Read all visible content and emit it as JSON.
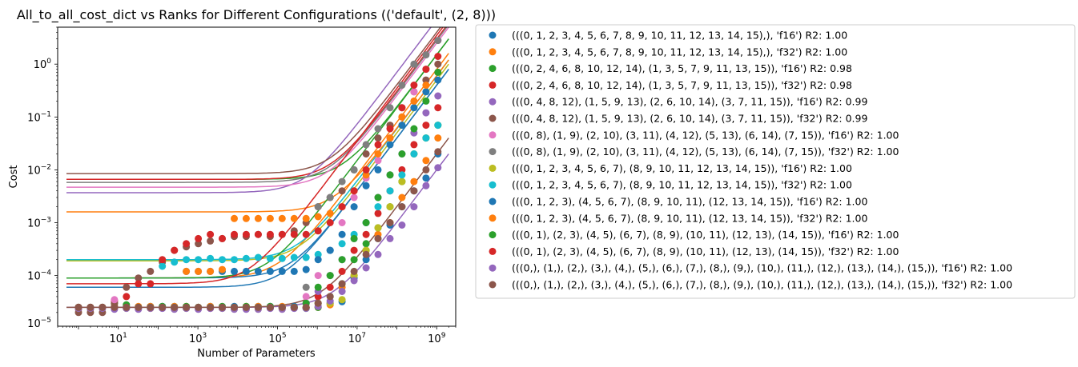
{
  "chart_data": {
    "type": "scatter",
    "title": "All_to_all_cost_dict vs Ranks for Different Configurations (('default', (2, 8)))",
    "xlabel": "Number of Parameters",
    "ylabel": "Cost",
    "xscale": "log",
    "yscale": "log",
    "xlim": [
      0.3,
      3000000000
    ],
    "ylim": [
      1.1e-05,
      5
    ],
    "xticks": [
      10,
      1000,
      100000,
      10000000,
      1000000000
    ],
    "xtick_labels": [
      [
        "10",
        "1"
      ],
      [
        "10",
        "3"
      ],
      [
        "10",
        "5"
      ],
      [
        "10",
        "7"
      ],
      [
        "10",
        "9"
      ]
    ],
    "yticks": [
      1e-05,
      0.0001,
      0.001,
      0.01,
      0.1,
      1
    ],
    "ytick_labels": [
      [
        "10",
        "−5"
      ],
      [
        "10",
        "−4"
      ],
      [
        "10",
        "−3"
      ],
      [
        "10",
        "−2"
      ],
      [
        "10",
        "−1"
      ],
      [
        "10",
        "0"
      ]
    ],
    "grid": false,
    "legend_position": "outside-right",
    "x": [
      1,
      2,
      4,
      8,
      16,
      32,
      64,
      128,
      256,
      512,
      1024,
      2048,
      4096,
      8192,
      16384,
      32768,
      65536,
      131072,
      262144,
      524288,
      1048576,
      2097152,
      4194304,
      8388608,
      16777216,
      33554432,
      67108864,
      134217728,
      268435456,
      536870912,
      1073741824
    ],
    "series": [
      {
        "name": "(((0, 1, 2, 3, 4, 5, 6, 7, 8, 9, 10, 11, 12, 13, 14, 15),), 'f16') R2: 1.00",
        "color": "#1f77b4",
        "fit_a": 4e-10,
        "fit_b": 6e-05,
        "y": [
          2.5e-05,
          2.5e-05,
          2.5e-05,
          2.6e-05,
          2.6e-05,
          2.5e-05,
          2.6e-05,
          2.6e-05,
          2.6e-05,
          2.5e-05,
          2.5e-05,
          2.6e-05,
          2.5e-05,
          2.6e-05,
          2.5e-05,
          2.6e-05,
          2.6e-05,
          2.5e-05,
          2.6e-05,
          2.5e-05,
          3e-05,
          3e-05,
          3.2e-05,
          9e-05,
          0.0002,
          0.0005,
          0.0009,
          0.002,
          0.004,
          0.007,
          0.02
        ]
      },
      {
        "name": "(((0, 1, 2, 3, 4, 5, 6, 7, 8, 9, 10, 11, 12, 13, 14, 15),), 'f32') R2: 1.00",
        "color": "#ff7f0e",
        "fit_a": 8e-10,
        "fit_b": 9e-05,
        "y": [
          2.5e-05,
          2.5e-05,
          2.5e-05,
          2.6e-05,
          2.5e-05,
          2.6e-05,
          2.6e-05,
          2.5e-05,
          2.6e-05,
          2.6e-05,
          2.5e-05,
          2.6e-05,
          2.5e-05,
          2.5e-05,
          2.6e-05,
          2.6e-05,
          2.5e-05,
          2.6e-05,
          2.5e-05,
          2.5e-05,
          2.5e-05,
          2.8e-05,
          6e-05,
          0.0001,
          0.0003,
          0.0006,
          0.001,
          0.003,
          0.006,
          0.015,
          0.04
        ]
      },
      {
        "name": "(((0, 2, 4, 6, 8, 10, 12, 14), (1, 3, 5, 7, 9, 11, 13, 15)), 'f16') R2: 0.98",
        "color": "#2ca02c",
        "fit_a": 1.5e-09,
        "fit_b": 0.0066,
        "y": [
          2.5e-05,
          2.4e-05,
          2.5e-05,
          3e-05,
          2.8e-05,
          2.5e-05,
          2.5e-05,
          2.6e-05,
          2.5e-05,
          2.6e-05,
          2.5e-05,
          2.5e-05,
          2.6e-05,
          2.5e-05,
          2.6e-05,
          2.5e-05,
          2.6e-05,
          2.5e-05,
          2.5e-05,
          2.4e-05,
          2.5e-05,
          4e-05,
          7e-05,
          0.0002,
          0.0004,
          0.0008,
          0.002,
          0.006,
          0.02,
          0.04,
          0.07
        ]
      },
      {
        "name": "(((0, 2, 4, 6, 8, 10, 12, 14), (1, 3, 5, 7, 9, 11, 13, 15)), 'f32') R2: 0.98",
        "color": "#d62728",
        "fit_a": 3e-09,
        "fit_b": 0.0066,
        "y": [
          2.5e-05,
          2.5e-05,
          2.5e-05,
          3.3e-05,
          4e-05,
          2.5e-05,
          2.4e-05,
          2.5e-05,
          2.4e-05,
          2.5e-05,
          2.5e-05,
          2.4e-05,
          2.5e-05,
          2.5e-05,
          2.4e-05,
          2.5e-05,
          2.5e-05,
          2.4e-05,
          2.5e-05,
          2.5e-05,
          4e-05,
          6e-05,
          0.00012,
          0.0003,
          0.0006,
          0.0015,
          0.004,
          0.01,
          0.03,
          0.07,
          0.15
        ]
      },
      {
        "name": "(((0, 4, 8, 12), (1, 5, 9, 13), (2, 6, 10, 14), (3, 7, 11, 15)), 'f16') R2: 0.99",
        "color": "#9467bd",
        "fit_a": 7e-09,
        "fit_b": 0.0037,
        "y": [
          2.3e-05,
          2.3e-05,
          2.4e-05,
          2.3e-05,
          2.4e-05,
          2.3e-05,
          2.5e-05,
          2.4e-05,
          2.3e-05,
          2.4e-05,
          2.3e-05,
          2.4e-05,
          2.4e-05,
          2.3e-05,
          2.3e-05,
          2.3e-05,
          2.4e-05,
          2.3e-05,
          2.4e-05,
          3e-05,
          5e-05,
          0.0001,
          0.0002,
          0.0005,
          0.001,
          0.003,
          0.008,
          0.02,
          0.05,
          0.12,
          0.25
        ]
      },
      {
        "name": "(((0, 4, 8, 12), (1, 5, 9, 13), (2, 6, 10, 14), (3, 7, 11, 15)), 'f32') R2: 0.99",
        "color": "#8c564b",
        "fit_a": 4e-09,
        "fit_b": 0.0085,
        "y": [
          2e-05,
          2e-05,
          2e-05,
          3e-05,
          6e-05,
          9e-05,
          0.00012,
          0.00018,
          0.0003,
          0.00035,
          0.0004,
          0.00045,
          0.0005,
          0.00055,
          0.00055,
          0.0006,
          0.00055,
          0.0006,
          0.0007,
          0.001,
          0.002,
          0.003,
          0.004,
          0.01,
          0.02,
          0.04,
          0.07,
          0.15,
          0.3,
          0.5,
          1.0
        ]
      },
      {
        "name": "(((0, 8), (1, 9), (2, 10), (3, 11), (4, 12), (5, 13), (6, 14), (7, 15)), 'f16') R2: 1.00",
        "color": "#e377c2",
        "fit_a": 2.5e-09,
        "fit_b": 0.0047,
        "y": [
          2.5e-05,
          2.5e-05,
          2.5e-05,
          3.5e-05,
          2.5e-05,
          2.5e-05,
          2.5e-05,
          2.5e-05,
          2.5e-05,
          2.5e-05,
          2.5e-05,
          2.5e-05,
          2.5e-05,
          2.5e-05,
          2.5e-05,
          2.5e-05,
          2.5e-05,
          2.5e-05,
          2.5e-05,
          4e-05,
          0.0001,
          0.0003,
          0.001,
          0.003,
          0.007,
          0.015,
          0.04,
          0.1,
          0.3,
          0.8,
          2.8
        ]
      },
      {
        "name": "(((0, 8), (1, 9), (2, 10), (3, 11), (4, 12), (5, 13), (6, 14), (7, 15)), 'f32') R2: 1.00",
        "color": "#7f7f7f",
        "fit_a": 2.8e-09,
        "fit_b": 0.0058,
        "y": [
          2.5e-05,
          2.5e-05,
          2.5e-05,
          2.5e-05,
          2.5e-05,
          2.5e-05,
          2.5e-05,
          2.5e-05,
          2.5e-05,
          2.5e-05,
          2.5e-05,
          2.5e-05,
          2.5e-05,
          2.5e-05,
          2.5e-05,
          2.5e-05,
          2.5e-05,
          2.5e-05,
          2.5e-05,
          6e-05,
          0.002,
          0.003,
          0.006,
          0.01,
          0.03,
          0.06,
          0.15,
          0.4,
          1.0,
          1.5,
          2.8
        ]
      },
      {
        "name": "(((0, 1, 2, 3, 4, 5, 6, 7), (8, 9, 10, 11, 12, 13, 14, 15)), 'f16') R2: 1.00",
        "color": "#bcbd22",
        "fit_a": 5e-10,
        "fit_b": 0.00019,
        "y": [
          2.4e-05,
          2.4e-05,
          2.5e-05,
          2.5e-05,
          2.4e-05,
          2.5e-05,
          2.4e-05,
          2.5e-05,
          2.4e-05,
          2.4e-05,
          2.5e-05,
          2.5e-05,
          2.4e-05,
          2.4e-05,
          2.5e-05,
          2.4e-05,
          2.5e-05,
          2.4e-05,
          2.5e-05,
          2.5e-05,
          3e-05,
          3e-05,
          3.5e-05,
          0.0001,
          0.0003,
          0.0008,
          0.002,
          0.006,
          0.02,
          0.04,
          0.07
        ]
      },
      {
        "name": "(((0, 1, 2, 3, 4, 5, 6, 7), (8, 9, 10, 11, 12, 13, 14, 15)), 'f32') R2: 1.00",
        "color": "#17becf",
        "fit_a": 6e-10,
        "fit_b": 0.0002,
        "y": [
          2.5e-05,
          2.5e-05,
          2.5e-05,
          2.5e-05,
          2.5e-05,
          2.5e-05,
          2.5e-05,
          0.00015,
          0.00018,
          0.0002,
          0.0002,
          0.00021,
          0.0002,
          0.0002,
          0.00021,
          0.00022,
          0.00021,
          0.00021,
          0.00022,
          0.00022,
          0.00025,
          0.0003,
          0.0004,
          0.0006,
          0.001,
          0.002,
          0.004,
          0.008,
          0.02,
          0.04,
          0.07
        ]
      },
      {
        "name": "(((0, 1, 2, 3), (4, 5, 6, 7), (8, 9, 10, 11), (12, 13, 14, 15)), 'f16') R2: 1.00",
        "color": "#1f77b4",
        "fit_a": 4e-10,
        "fit_b": 9e-05,
        "y": [
          2.5e-05,
          2.5e-05,
          2.5e-05,
          2.5e-05,
          2.5e-05,
          2.5e-05,
          2.5e-05,
          2.5e-05,
          2.5e-05,
          0.00012,
          0.00012,
          0.00012,
          0.00012,
          0.00012,
          0.00012,
          0.00012,
          0.00012,
          0.00012,
          0.00012,
          0.00013,
          0.0002,
          0.0003,
          0.0006,
          0.002,
          0.005,
          0.01,
          0.03,
          0.07,
          0.15,
          0.3,
          0.5
        ]
      },
      {
        "name": "(((0, 1, 2, 3), (4, 5, 6, 7), (8, 9, 10, 11), (12, 13, 14, 15)), 'f32') R2: 1.00",
        "color": "#ff7f0e",
        "fit_a": 6e-10,
        "fit_b": 0.0016,
        "y": [
          2.5e-05,
          2.5e-05,
          2.5e-05,
          2.5e-05,
          2.5e-05,
          2.5e-05,
          2.5e-05,
          2.5e-05,
          2.5e-05,
          0.00012,
          0.00012,
          0.00012,
          0.00013,
          0.0012,
          0.0012,
          0.0012,
          0.0012,
          0.0012,
          0.0012,
          0.0012,
          0.0013,
          0.0015,
          0.002,
          0.004,
          0.008,
          0.02,
          0.04,
          0.1,
          0.2,
          0.4,
          0.7
        ]
      },
      {
        "name": "(((0, 1), (2, 3), (4, 5), (6, 7), (8, 9), (10, 11), (12, 13), (14, 15)), 'f16') R2: 1.00",
        "color": "#2ca02c",
        "fit_a": 1.5e-09,
        "fit_b": 9e-05,
        "y": [
          2.5e-05,
          2.5e-05,
          2.5e-05,
          2.5e-05,
          2.5e-05,
          2.5e-05,
          2.5e-05,
          2.5e-05,
          2.5e-05,
          2.5e-05,
          2.5e-05,
          2.5e-05,
          2.5e-05,
          2.5e-05,
          2.5e-05,
          2.5e-05,
          2.5e-05,
          2.5e-05,
          2.5e-05,
          3e-05,
          6e-05,
          0.0001,
          0.0002,
          0.0005,
          0.001,
          0.003,
          0.008,
          0.02,
          0.06,
          0.2,
          0.7
        ]
      },
      {
        "name": "(((0, 1), (2, 3), (4, 5), (6, 7), (8, 9), (10, 11), (12, 13), (14, 15)), 'f32') R2: 1.00",
        "color": "#d62728",
        "fit_a": 3.5e-09,
        "fit_b": 7e-05,
        "y": [
          2.5e-05,
          2.5e-05,
          2.5e-05,
          2.5e-05,
          2.5e-05,
          7e-05,
          7e-05,
          0.0002,
          0.0003,
          0.0004,
          0.0005,
          0.0006,
          0.0005,
          0.0006,
          0.0006,
          0.0006,
          0.0006,
          0.0006,
          0.0006,
          0.0006,
          0.0007,
          0.001,
          0.002,
          0.004,
          0.01,
          0.03,
          0.06,
          0.15,
          0.4,
          0.8,
          1.4
        ]
      },
      {
        "name": "(((0,), (1,), (2,), (3,), (4,), (5,), (6,), (7,), (8,), (9,), (10,), (11,), (12,), (13,), (14,), (15,)), 'f16') R2: 1.00",
        "color": "#9467bd",
        "fit_a": 1e-11,
        "fit_b": 2.5e-05,
        "y": [
          2.4e-05,
          2.4e-05,
          2.4e-05,
          2.4e-05,
          2.4e-05,
          2.4e-05,
          2.4e-05,
          2.4e-05,
          2.4e-05,
          2.4e-05,
          2.4e-05,
          2.4e-05,
          2.4e-05,
          2.4e-05,
          2.4e-05,
          2.4e-05,
          2.4e-05,
          2.4e-05,
          2.4e-05,
          2.4e-05,
          2.6e-05,
          3.3e-05,
          5e-05,
          8e-05,
          0.00014,
          0.00025,
          0.0005,
          0.0009,
          0.002,
          0.005,
          0.011
        ]
      },
      {
        "name": "(((0,), (1,), (2,), (3,), (4,), (5,), (6,), (7,), (8,), (9,), (10,), (11,), (12,), (13,), (14,), (15,)), 'f32') R2: 1.00",
        "color": "#8c564b",
        "fit_a": 2e-11,
        "fit_b": 2.5e-05,
        "y": [
          2.5e-05,
          2.5e-05,
          2.5e-05,
          2.5e-05,
          2.5e-05,
          2.5e-05,
          2.5e-05,
          2.5e-05,
          2.5e-05,
          2.5e-05,
          2.5e-05,
          2.5e-05,
          2.5e-05,
          2.5e-05,
          2.5e-05,
          2.5e-05,
          2.5e-05,
          2.5e-05,
          2.5e-05,
          2.5e-05,
          3e-05,
          4e-05,
          7e-05,
          0.00012,
          0.00025,
          0.0005,
          0.001,
          0.002,
          0.004,
          0.01,
          0.022
        ]
      }
    ]
  }
}
